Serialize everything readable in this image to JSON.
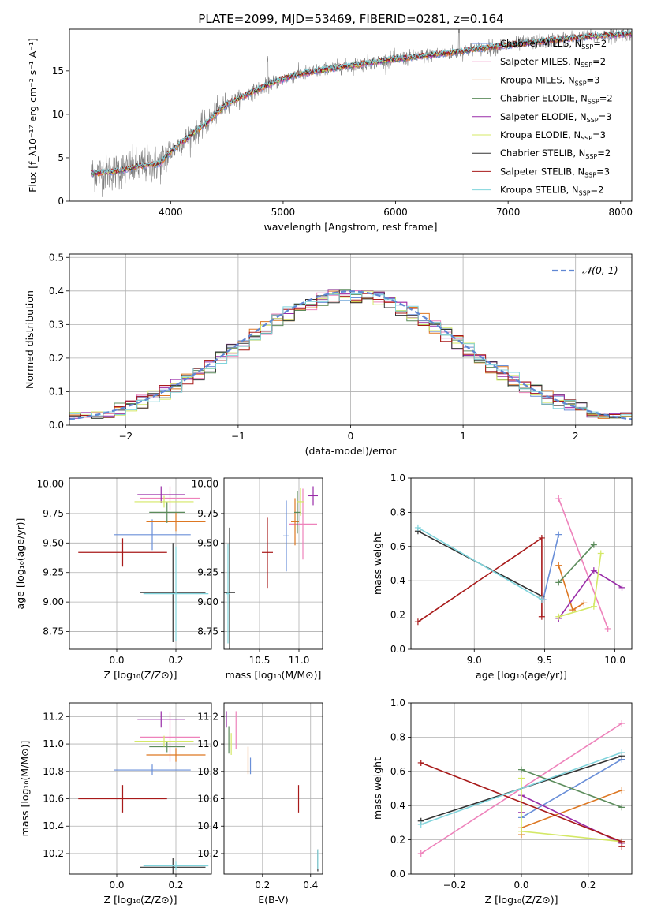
{
  "figure_title": "PLATE=2099, MJD=53469, FIBERID=0281, z=0.164",
  "colors": {
    "Chabrier MILES": "#6a8fd8",
    "Salpeter MILES": "#ee82bb",
    "Kroupa MILES": "#dd7722",
    "Chabrier ELODIE": "#5c8c5c",
    "Salpeter ELODIE": "#992ba8",
    "Kroupa ELODIE": "#d4e866",
    "Chabrier STELIB": "#333333",
    "Salpeter STELIB": "#a81a1a",
    "Kroupa STELIB": "#80d4dc",
    "data": "#808080",
    "normal": "#5f87d3"
  },
  "chart_data": [
    {
      "id": "spectrum",
      "type": "line",
      "xlabel": "wavelength [Angstrom, rest frame]",
      "ylabel": "Flux [f_λ10⁻¹⁷ erg cm⁻² s⁻¹ A⁻¹]",
      "xlim": [
        3100,
        8100
      ],
      "ylim": [
        0,
        19.8
      ],
      "xticks": [
        4000,
        5000,
        6000,
        7000,
        8000
      ],
      "yticks": [
        0,
        5,
        10,
        15
      ],
      "legend": [
        "Chabrier MILES, N_SSP=2",
        "Salpeter MILES, N_SSP=2",
        "Kroupa MILES, N_SSP=3",
        "Chabrier ELODIE, N_SSP=2",
        "Salpeter ELODIE, N_SSP=3",
        "Kroupa ELODIE, N_SSP=3",
        "Chabrier STELIB, N_SSP=2",
        "Salpeter STELIB, N_SSP=3",
        "Kroupa STELIB, N_SSP=2"
      ],
      "legend_position": "right",
      "model_continuum": [
        [
          3300,
          3.2
        ],
        [
          3500,
          3.4
        ],
        [
          3700,
          4.0
        ],
        [
          3900,
          4.3
        ],
        [
          4000,
          5.7
        ],
        [
          4100,
          6.8
        ],
        [
          4200,
          7.8
        ],
        [
          4300,
          8.8
        ],
        [
          4500,
          11.2
        ],
        [
          4700,
          12.4
        ],
        [
          4900,
          13.6
        ],
        [
          5100,
          14.5
        ],
        [
          5300,
          15.0
        ],
        [
          5500,
          15.4
        ],
        [
          5700,
          15.8
        ],
        [
          5900,
          16.2
        ],
        [
          6100,
          16.5
        ],
        [
          6300,
          16.8
        ],
        [
          6500,
          17.1
        ],
        [
          6700,
          17.5
        ],
        [
          6900,
          17.8
        ],
        [
          7100,
          18.1
        ],
        [
          7300,
          18.4
        ],
        [
          7500,
          18.7
        ],
        [
          7700,
          18.9
        ],
        [
          7900,
          19.1
        ],
        [
          8100,
          19.3
        ]
      ]
    },
    {
      "id": "residuals",
      "type": "line",
      "xlabel": "(data-model)/error",
      "ylabel": "Normed distribution",
      "xlim": [
        -2.5,
        2.5
      ],
      "ylim": [
        0,
        0.51
      ],
      "xticks": [
        -2,
        -1,
        0,
        1,
        2
      ],
      "yticks": [
        0.0,
        0.1,
        0.2,
        0.3,
        0.4,
        0.5
      ],
      "grid": true,
      "legend": [
        "𝒩(0, 1)"
      ],
      "legend_position": "top-right",
      "bin_width": 0.1
    },
    {
      "id": "age_vs_Z",
      "type": "scatter",
      "xlabel": "Z [log₁₀(Z/Z⊙)]",
      "ylabel": "age  [log₁₀(age/yr)]",
      "xlim": [
        -0.16,
        0.32
      ],
      "ylim": [
        8.6,
        10.05
      ],
      "xticks": [
        0.0,
        0.2
      ],
      "yticks": [
        8.75,
        9.0,
        9.25,
        9.5,
        9.75,
        10.0
      ],
      "grid": true,
      "points": [
        {
          "model": "Chabrier MILES",
          "x": 0.12,
          "xerr": 0.13,
          "y": 9.57,
          "yerr": 0.13
        },
        {
          "model": "Salpeter MILES",
          "x": 0.18,
          "xerr": 0.1,
          "y": 9.88,
          "yerr": 0.1
        },
        {
          "model": "Kroupa MILES",
          "x": 0.2,
          "xerr": 0.1,
          "y": 9.68,
          "yerr": 0.08
        },
        {
          "model": "Chabrier ELODIE",
          "x": 0.17,
          "xerr": 0.06,
          "y": 9.76,
          "yerr": 0.09
        },
        {
          "model": "Salpeter ELODIE",
          "x": 0.15,
          "xerr": 0.08,
          "y": 9.91,
          "yerr": 0.07
        },
        {
          "model": "Kroupa ELODIE",
          "x": 0.16,
          "xerr": 0.1,
          "y": 9.85,
          "yerr": 0.05
        },
        {
          "model": "Chabrier STELIB",
          "x": 0.19,
          "xerr": 0.11,
          "y": 9.08,
          "yerr": 0.42
        },
        {
          "model": "Salpeter STELIB",
          "x": 0.02,
          "xerr": 0.15,
          "y": 9.42,
          "yerr": 0.12
        },
        {
          "model": "Kroupa STELIB",
          "x": 0.2,
          "xerr": 0.11,
          "y": 9.07,
          "yerr": 0.4
        }
      ]
    },
    {
      "id": "age_vs_mass",
      "type": "scatter",
      "xlabel": "mass [log₁₀(M/M⊙)]",
      "ylabel": "",
      "xlim": [
        10.05,
        11.3
      ],
      "ylim": [
        8.6,
        10.05
      ],
      "xticks": [
        10.5,
        11.0
      ],
      "yticks": [
        8.75,
        9.0,
        9.25,
        9.5,
        9.75,
        10.0
      ],
      "grid": true,
      "points": [
        {
          "model": "Chabrier MILES",
          "x": 10.84,
          "xerr": 0.04,
          "y": 9.56,
          "yerr": 0.3
        },
        {
          "model": "Salpeter MILES",
          "x": 11.05,
          "xerr": 0.18,
          "y": 9.66,
          "yerr": 0.3
        },
        {
          "model": "Kroupa MILES",
          "x": 10.95,
          "xerr": 0.05,
          "y": 9.68,
          "yerr": 0.2
        },
        {
          "model": "Chabrier ELODIE",
          "x": 10.98,
          "xerr": 0.04,
          "y": 9.76,
          "yerr": 0.18
        },
        {
          "model": "Salpeter ELODIE",
          "x": 11.18,
          "xerr": 0.06,
          "y": 9.9,
          "yerr": 0.08
        },
        {
          "model": "Kroupa ELODIE",
          "x": 11.02,
          "xerr": 0.04,
          "y": 9.85,
          "yerr": 0.12
        },
        {
          "model": "Chabrier STELIB",
          "x": 10.12,
          "xerr": 0.07,
          "y": 9.08,
          "yerr": 0.55
        },
        {
          "model": "Salpeter STELIB",
          "x": 10.6,
          "xerr": 0.07,
          "y": 9.42,
          "yerr": 0.3
        },
        {
          "model": "Kroupa STELIB",
          "x": 10.1,
          "xerr": 0.03,
          "y": 9.07,
          "yerr": 0.42
        }
      ]
    },
    {
      "id": "weight_vs_age",
      "type": "line",
      "xlabel": "age  [log₁₀(age/yr)]",
      "ylabel": "mass weight",
      "xlim": [
        8.55,
        10.12
      ],
      "ylim": [
        0.0,
        1.0
      ],
      "xticks": [
        9.0,
        9.5,
        10.0
      ],
      "yticks": [
        0.0,
        0.2,
        0.4,
        0.6,
        0.8,
        1.0
      ],
      "grid": true,
      "series": [
        {
          "model": "Chabrier MILES",
          "x": [
            9.49,
            9.6
          ],
          "y": [
            0.29,
            0.67
          ]
        },
        {
          "model": "Salpeter MILES",
          "x": [
            9.6,
            9.95
          ],
          "y": [
            0.88,
            0.12
          ]
        },
        {
          "model": "Kroupa MILES",
          "x": [
            9.6,
            9.7,
            9.78
          ],
          "y": [
            0.49,
            0.23,
            0.27
          ]
        },
        {
          "model": "Chabrier ELODIE",
          "x": [
            9.6,
            9.85
          ],
          "y": [
            0.39,
            0.61
          ]
        },
        {
          "model": "Salpeter ELODIE",
          "x": [
            9.6,
            9.85,
            10.05
          ],
          "y": [
            0.18,
            0.46,
            0.36
          ]
        },
        {
          "model": "Kroupa ELODIE",
          "x": [
            9.6,
            9.85,
            9.9
          ],
          "y": [
            0.19,
            0.25,
            0.56
          ]
        },
        {
          "model": "Chabrier STELIB",
          "x": [
            8.6,
            9.48
          ],
          "y": [
            0.69,
            0.31
          ]
        },
        {
          "model": "Salpeter STELIB",
          "x": [
            8.6,
            9.48,
            9.48
          ],
          "y": [
            0.16,
            0.65,
            0.19
          ]
        },
        {
          "model": "Kroupa STELIB",
          "x": [
            8.6,
            9.48
          ],
          "y": [
            0.71,
            0.29
          ]
        }
      ]
    },
    {
      "id": "mass_vs_Z",
      "type": "scatter",
      "xlabel": "Z [log₁₀(Z/Z⊙)]",
      "ylabel": "mass [log₁₀(M/M⊙)]",
      "xlim": [
        -0.16,
        0.32
      ],
      "ylim": [
        10.05,
        11.3
      ],
      "xticks": [
        0.0,
        0.2
      ],
      "yticks": [
        10.2,
        10.4,
        10.6,
        10.8,
        11.0,
        11.2
      ],
      "grid": true,
      "points": [
        {
          "model": "Chabrier MILES",
          "x": 0.12,
          "xerr": 0.13,
          "y": 10.81,
          "yerr": 0.04
        },
        {
          "model": "Salpeter MILES",
          "x": 0.18,
          "xerr": 0.1,
          "y": 11.05,
          "yerr": 0.18
        },
        {
          "model": "Kroupa MILES",
          "x": 0.2,
          "xerr": 0.1,
          "y": 10.92,
          "yerr": 0.05
        },
        {
          "model": "Chabrier ELODIE",
          "x": 0.17,
          "xerr": 0.06,
          "y": 10.98,
          "yerr": 0.04
        },
        {
          "model": "Salpeter ELODIE",
          "x": 0.15,
          "xerr": 0.08,
          "y": 11.18,
          "yerr": 0.06
        },
        {
          "model": "Kroupa ELODIE",
          "x": 0.16,
          "xerr": 0.1,
          "y": 11.02,
          "yerr": 0.04
        },
        {
          "model": "Chabrier STELIB",
          "x": 0.19,
          "xerr": 0.11,
          "y": 10.1,
          "yerr": 0.07
        },
        {
          "model": "Salpeter STELIB",
          "x": 0.02,
          "xerr": 0.15,
          "y": 10.6,
          "yerr": 0.1
        },
        {
          "model": "Kroupa STELIB",
          "x": 0.2,
          "xerr": 0.11,
          "y": 10.11,
          "yerr": 0.03
        }
      ]
    },
    {
      "id": "mass_vs_ebv",
      "type": "scatter",
      "xlabel": "E(B-V)",
      "ylabel": "",
      "xlim": [
        0.04,
        0.45
      ],
      "ylim": [
        10.05,
        11.3
      ],
      "xticks": [
        0.2,
        0.4
      ],
      "yticks": [
        10.2,
        10.4,
        10.6,
        10.8,
        11.0,
        11.2
      ],
      "grid": true,
      "points": [
        {
          "model": "Chabrier MILES",
          "x": 0.15,
          "xerr": 0.0,
          "y": 10.84,
          "yerr": 0.06
        },
        {
          "model": "Salpeter MILES",
          "x": 0.09,
          "xerr": 0.0,
          "y": 11.1,
          "yerr": 0.14
        },
        {
          "model": "Kroupa MILES",
          "x": 0.14,
          "xerr": 0.0,
          "y": 10.88,
          "yerr": 0.1
        },
        {
          "model": "Chabrier ELODIE",
          "x": 0.06,
          "xerr": 0.0,
          "y": 11.03,
          "yerr": 0.1
        },
        {
          "model": "Salpeter ELODIE",
          "x": 0.05,
          "xerr": 0.0,
          "y": 11.18,
          "yerr": 0.06
        },
        {
          "model": "Kroupa ELODIE",
          "x": 0.07,
          "xerr": 0.0,
          "y": 11.0,
          "yerr": 0.08
        },
        {
          "model": "Chabrier STELIB",
          "x": 0.43,
          "xerr": 0.0,
          "y": 10.15,
          "yerr": 0.08
        },
        {
          "model": "Salpeter STELIB",
          "x": 0.35,
          "xerr": 0.0,
          "y": 10.6,
          "yerr": 0.1
        },
        {
          "model": "Kroupa STELIB",
          "x": 0.43,
          "xerr": 0.0,
          "y": 10.16,
          "yerr": 0.07
        }
      ]
    },
    {
      "id": "weight_vs_Z",
      "type": "line",
      "xlabel": "Z [log₁₀(Z/Z⊙)]",
      "ylabel": "mass weight",
      "xlim": [
        -0.33,
        0.33
      ],
      "ylim": [
        0.0,
        1.0
      ],
      "xticks": [
        -0.2,
        0.0,
        0.2
      ],
      "yticks": [
        0.0,
        0.2,
        0.4,
        0.6,
        0.8,
        1.0
      ],
      "grid": true,
      "series": [
        {
          "model": "Chabrier MILES",
          "x": [
            0.0,
            0.3
          ],
          "y": [
            0.33,
            0.67
          ]
        },
        {
          "model": "Salpeter MILES",
          "x": [
            -0.3,
            0.3
          ],
          "y": [
            0.12,
            0.88
          ]
        },
        {
          "model": "Kroupa MILES",
          "x": [
            0.0,
            0.0,
            0.3
          ],
          "y": [
            0.23,
            0.27,
            0.49
          ]
        },
        {
          "model": "Chabrier ELODIE",
          "x": [
            0.0,
            0.3
          ],
          "y": [
            0.61,
            0.39
          ]
        },
        {
          "model": "Salpeter ELODIE",
          "x": [
            0.0,
            0.0,
            0.3
          ],
          "y": [
            0.36,
            0.46,
            0.18
          ]
        },
        {
          "model": "Kroupa ELODIE",
          "x": [
            0.0,
            0.0,
            0.3
          ],
          "y": [
            0.56,
            0.25,
            0.19
          ]
        },
        {
          "model": "Chabrier STELIB",
          "x": [
            -0.3,
            0.3
          ],
          "y": [
            0.31,
            0.69
          ]
        },
        {
          "model": "Salpeter STELIB",
          "x": [
            -0.3,
            0.3,
            0.3
          ],
          "y": [
            0.65,
            0.19,
            0.16
          ]
        },
        {
          "model": "Kroupa STELIB",
          "x": [
            -0.3,
            0.3
          ],
          "y": [
            0.29,
            0.71
          ]
        }
      ]
    }
  ]
}
